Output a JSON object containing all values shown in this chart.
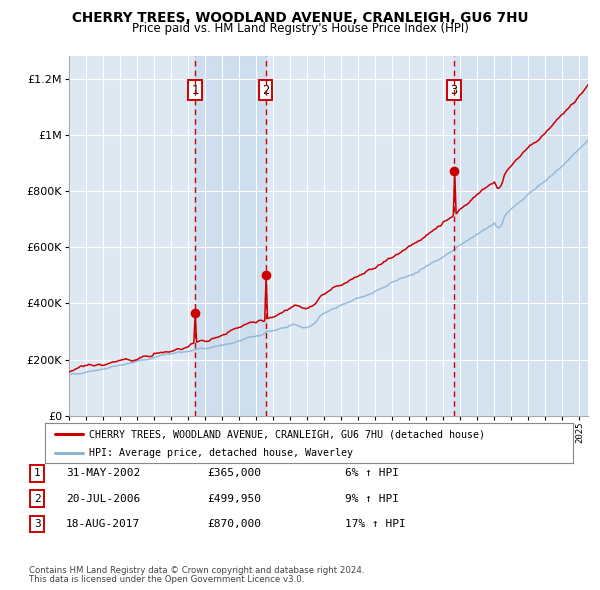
{
  "title": "CHERRY TREES, WOODLAND AVENUE, CRANLEIGH, GU6 7HU",
  "subtitle": "Price paid vs. HM Land Registry's House Price Index (HPI)",
  "red_label": "CHERRY TREES, WOODLAND AVENUE, CRANLEIGH, GU6 7HU (detached house)",
  "blue_label": "HPI: Average price, detached house, Waverley",
  "transactions": [
    {
      "num": 1,
      "date": "31-MAY-2002",
      "price": 365000,
      "pct": "6%",
      "direction": "↑"
    },
    {
      "num": 2,
      "date": "20-JUL-2006",
      "price": 499950,
      "pct": "9%",
      "direction": "↑"
    },
    {
      "num": 3,
      "date": "18-AUG-2017",
      "price": 870000,
      "pct": "17%",
      "direction": "↑"
    }
  ],
  "transaction_years": [
    2002.42,
    2006.55,
    2017.63
  ],
  "transaction_prices": [
    365000,
    499950,
    870000
  ],
  "ylim": [
    0,
    1280000
  ],
  "xlim_start": 1995.0,
  "xlim_end": 2025.5,
  "background_color": "#ffffff",
  "plot_bg_color": "#dde8f3",
  "grid_color": "#ffffff",
  "red_color": "#cc0000",
  "blue_color": "#8ab4d4",
  "dashed_color": "#cc0000",
  "footnote1": "Contains HM Land Registry data © Crown copyright and database right 2024.",
  "footnote2": "This data is licensed under the Open Government Licence v3.0."
}
